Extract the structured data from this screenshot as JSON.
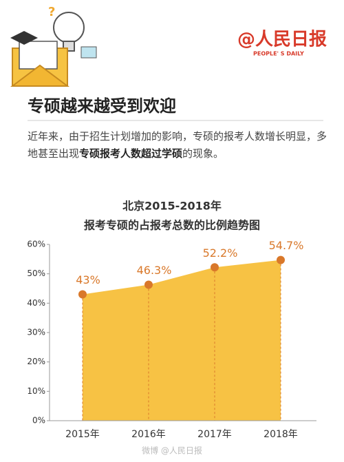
{
  "header": {
    "logo": "@人民日报",
    "logo_sub": "PEOPLE' S DAILY",
    "title": "专硕越来越受到欢迎",
    "intro": [
      "近年来，由于招生计划增加的影响，专硕的报考人数增长明显，多地甚至出现",
      "专硕报考人数超过学硕",
      "的现象。"
    ]
  },
  "chart_data": {
    "type": "area",
    "title": "北京2015-2018年",
    "subtitle": "报考专硕的占报考总数的比例趋势图",
    "categories": [
      "2015年",
      "2016年",
      "2017年",
      "2018年"
    ],
    "values": [
      43,
      46.3,
      52.2,
      54.7
    ],
    "value_labels": [
      "43%",
      "46.3%",
      "52.2%",
      "54.7%"
    ],
    "color": "#f7c244",
    "marker_color": "#d9782a",
    "ylim": [
      0,
      60
    ],
    "yticks": [
      {
        "value": 0,
        "label": "0%"
      },
      {
        "value": 10,
        "label": "10%"
      },
      {
        "value": 20,
        "label": "20%"
      },
      {
        "value": 30,
        "label": "30%"
      },
      {
        "value": 40,
        "label": "40%"
      },
      {
        "value": 50,
        "label": "50%"
      },
      {
        "value": 60,
        "label": "60%"
      }
    ]
  },
  "watermark": "微博 @人民日报"
}
